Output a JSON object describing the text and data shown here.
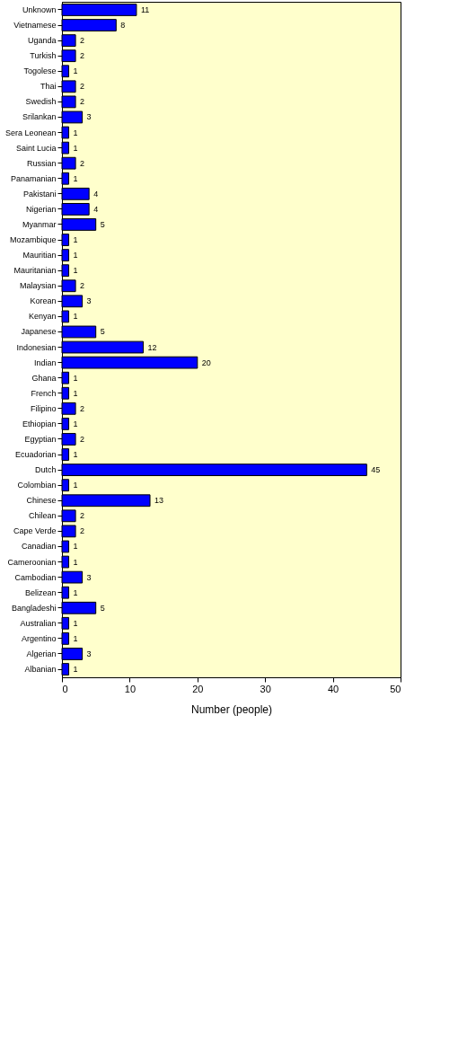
{
  "chart_data": {
    "type": "bar",
    "orientation": "horizontal",
    "xlabel": "Number (people)",
    "categories": [
      "Unknown",
      "Vietnamese",
      "Uganda",
      "Turkish",
      "Togolese",
      "Thai",
      "Swedish",
      "Srilankan",
      "Sera Leonean",
      "Saint Lucia",
      "Russian",
      "Panamanian",
      "Pakistani",
      "Nigerian",
      "Myanmar",
      "Mozambique",
      "Mauritian",
      "Mauritanian",
      "Malaysian",
      "Korean",
      "Kenyan",
      "Japanese",
      "Indonesian",
      "Indian",
      "Ghana",
      "French",
      "Filipino",
      "Ethiopian",
      "Egyptian",
      "Ecuadorian",
      "Dutch",
      "Colombian",
      "Chinese",
      "Chilean",
      "Cape Verde",
      "Canadian",
      "Cameroonian",
      "Cambodian",
      "Belizean",
      "Bangladeshi",
      "Australian",
      "Argentino",
      "Algerian",
      "Albanian"
    ],
    "values": [
      11,
      8,
      2,
      2,
      1,
      2,
      2,
      3,
      1,
      1,
      2,
      1,
      4,
      4,
      5,
      1,
      1,
      1,
      2,
      3,
      1,
      5,
      12,
      20,
      1,
      1,
      2,
      1,
      2,
      1,
      45,
      1,
      13,
      2,
      2,
      1,
      1,
      3,
      1,
      5,
      1,
      1,
      3,
      1
    ],
    "color": "#0000ff",
    "xlim": [
      0,
      50
    ],
    "xticks": [
      0,
      10,
      20,
      30,
      40,
      50
    ],
    "grid": false,
    "data_labels": true
  }
}
